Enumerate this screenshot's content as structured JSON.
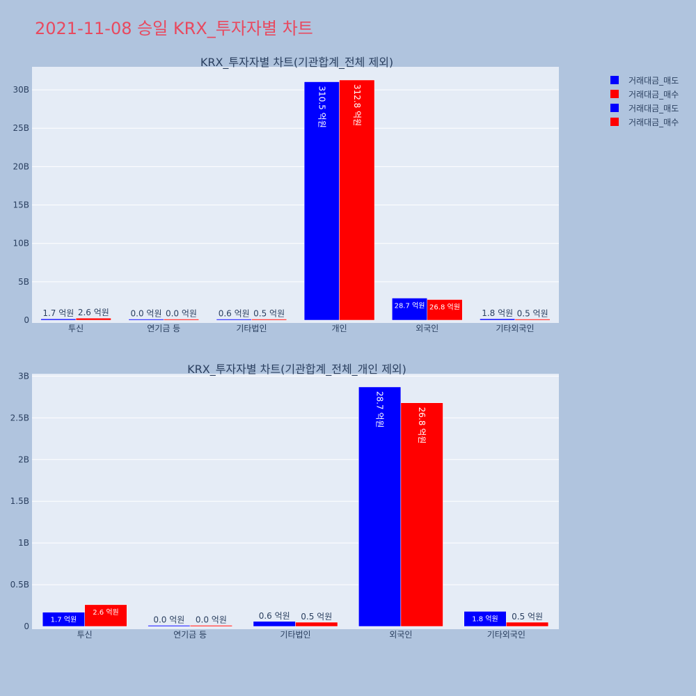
{
  "page_title": "2021-11-08 승일 KRX_투자자별 차트",
  "colors": {
    "background": "#b0c4de",
    "plot_bg": "#e5ecf6",
    "grid": "#ffffff",
    "title": "#e8495f",
    "axis_text": "#2a3f5f",
    "sell": "#0000ff",
    "buy": "#ff0000"
  },
  "legend": [
    {
      "label": "거래대금_매도",
      "color": "#0000ff"
    },
    {
      "label": "거래대금_매수",
      "color": "#ff0000"
    },
    {
      "label": "거래대금_매도",
      "color": "#0000ff"
    },
    {
      "label": "거래대금_매수",
      "color": "#ff0000"
    }
  ],
  "chart_data": [
    {
      "type": "bar",
      "title": "KRX_투자자별 차트(기관합계_전체 제외)",
      "categories": [
        "투신",
        "연기금 등",
        "기타법인",
        "개인",
        "외국인",
        "기타외국인"
      ],
      "series": [
        {
          "name": "거래대금_매도",
          "color": "#0000ff",
          "values": [
            170000000,
            0,
            60000000,
            31050000000,
            2870000000,
            180000000
          ],
          "labels": [
            "1.7 억원",
            "0.0 억원",
            "0.6 억원",
            "310.5 억원",
            "28.7 억원",
            "1.8 억원"
          ]
        },
        {
          "name": "거래대금_매수",
          "color": "#ff0000",
          "values": [
            260000000,
            0,
            50000000,
            31280000000,
            2680000000,
            50000000
          ],
          "labels": [
            "2.6 억원",
            "0.0 억원",
            "0.5 억원",
            "312.8 억원",
            "26.8 억원",
            "0.5 억원"
          ]
        }
      ],
      "ylim": [
        0,
        33000000000
      ],
      "yticks": [
        0,
        5000000000,
        10000000000,
        15000000000,
        20000000000,
        25000000000,
        30000000000
      ],
      "ytick_labels": [
        "0",
        "5B",
        "10B",
        "15B",
        "20B",
        "25B",
        "30B"
      ],
      "grid": true
    },
    {
      "type": "bar",
      "title": "KRX_투자자별 차트(기관합계_전체_개인 제외)",
      "categories": [
        "투신",
        "연기금 등",
        "기타법인",
        "외국인",
        "기타외국인"
      ],
      "series": [
        {
          "name": "거래대금_매도",
          "color": "#0000ff",
          "values": [
            170000000,
            0,
            60000000,
            2870000000,
            180000000
          ],
          "labels": [
            "1.7 억원",
            "0.0 억원",
            "0.6 억원",
            "28.7 억원",
            "1.8 억원"
          ]
        },
        {
          "name": "거래대금_매수",
          "color": "#ff0000",
          "values": [
            260000000,
            0,
            50000000,
            2680000000,
            50000000
          ],
          "labels": [
            "2.6 억원",
            "0.0 억원",
            "0.5 억원",
            "26.8 억원",
            "0.5 억원"
          ]
        }
      ],
      "ylim": [
        0,
        3020000000
      ],
      "yticks": [
        0,
        500000000,
        1000000000,
        1500000000,
        2000000000,
        2500000000,
        3000000000
      ],
      "ytick_labels": [
        "0",
        "0.5B",
        "1B",
        "1.5B",
        "2B",
        "2.5B",
        "3B"
      ],
      "grid": true
    }
  ]
}
